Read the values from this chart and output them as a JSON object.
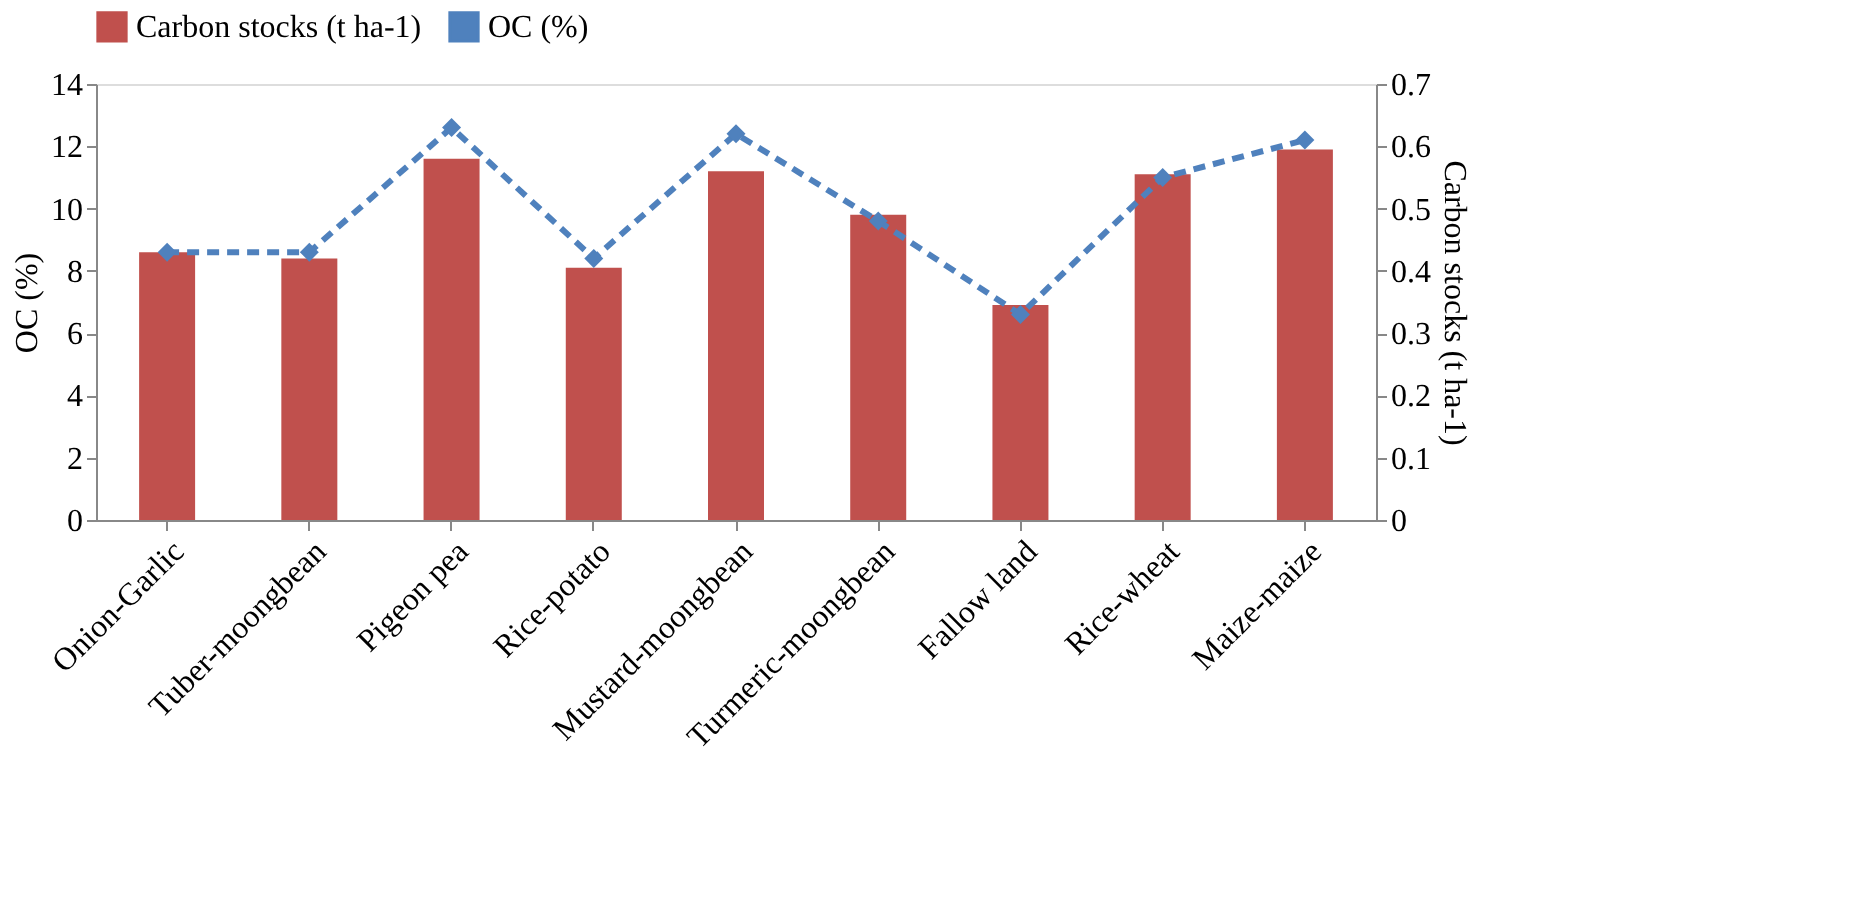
{
  "chart_data": {
    "type": "bar",
    "categories": [
      "Onion-Garlic",
      "Tuber-moongbean",
      "Pigeon pea",
      "Rice-potato",
      "Mustard-moongbean",
      "Turmeric-moongbean",
      "Fallow land",
      "Rice-wheat",
      "Maize-maize"
    ],
    "series": [
      {
        "name": "Carbon stocks (t ha-1)",
        "color": "#c0504d",
        "values": [
          8.6,
          8.4,
          11.6,
          8.1,
          11.2,
          9.8,
          6.9,
          11.1,
          11.9
        ]
      },
      {
        "name": "OC (%)",
        "type": "line",
        "axis": "y2",
        "color": "#4f81bd",
        "marker": "diamond",
        "line_style": "dashed",
        "values": [
          0.43,
          0.43,
          0.63,
          0.42,
          0.62,
          0.48,
          0.33,
          0.55,
          0.61
        ]
      }
    ],
    "ylabel": "OC (%)",
    "y2label": "Carbon stocks (t ha-1)",
    "ylim": [
      0,
      14
    ],
    "yticks": [
      0,
      2,
      4,
      6,
      8,
      10,
      12,
      14
    ],
    "y2lim": [
      0,
      0.7
    ],
    "y2ticks": [
      0,
      0.1,
      0.2,
      0.3,
      0.4,
      0.5,
      0.6,
      0.7
    ],
    "grid": false,
    "legend": "top"
  }
}
